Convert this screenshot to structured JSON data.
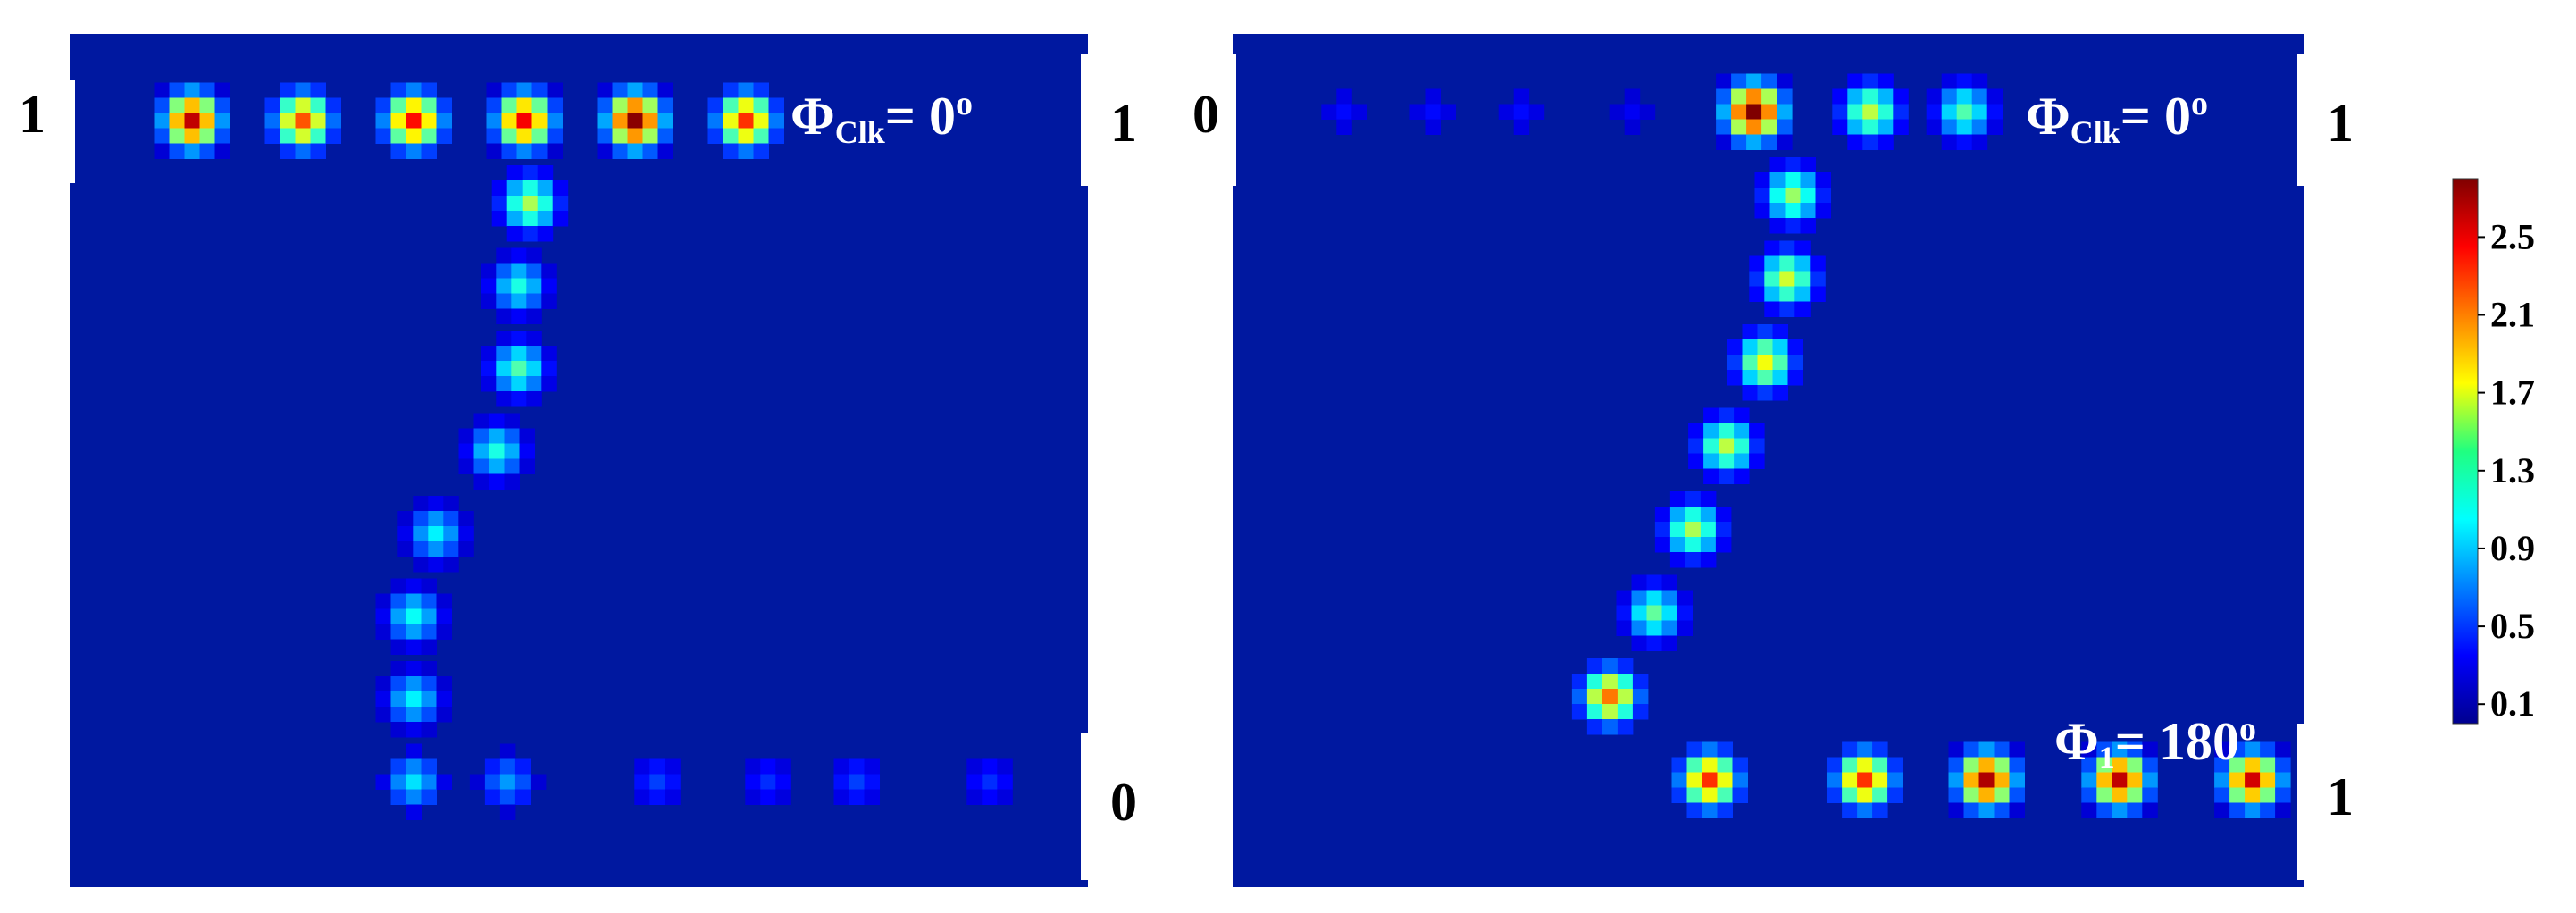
{
  "chart_data": [
    {
      "type": "heatmap",
      "panel": "left",
      "title": "",
      "ports": {
        "top_left": "1",
        "top_right": "1",
        "bottom_right": "0"
      },
      "annotation": {
        "symbol": "Φ",
        "sub": "Clk",
        "rest": "= 0",
        "sup": "o"
      },
      "value_range": [
        0.0,
        2.8
      ],
      "background_value": 0.02,
      "clusters": [
        {
          "row": 0,
          "col": 0,
          "peak": 2.6
        },
        {
          "row": 0,
          "col": 1,
          "peak": 2.2
        },
        {
          "row": 0,
          "col": 2,
          "peak": 2.4
        },
        {
          "row": 0,
          "col": 3,
          "peak": 2.45
        },
        {
          "row": 0,
          "col": 4,
          "peak": 2.75
        },
        {
          "row": 0,
          "col": 5,
          "peak": 2.3
        },
        {
          "row": 1,
          "col": 3.05,
          "peak": 1.5
        },
        {
          "row": 2,
          "col": 2.95,
          "peak": 1.1
        },
        {
          "row": 3,
          "col": 2.95,
          "peak": 1.25
        },
        {
          "row": 4,
          "col": 2.75,
          "peak": 1.1
        },
        {
          "row": 5,
          "col": 2.2,
          "peak": 1.0
        },
        {
          "row": 6,
          "col": 2.0,
          "peak": 1.05
        },
        {
          "row": 7,
          "col": 2.0,
          "peak": 1.0
        },
        {
          "row": 8,
          "col": 2.0,
          "peak": 0.95
        },
        {
          "row": 8,
          "col": 2.85,
          "peak": 0.75
        },
        {
          "row": 8,
          "col": 4.2,
          "peak": 0.5
        },
        {
          "row": 8,
          "col": 5.2,
          "peak": 0.45
        },
        {
          "row": 8,
          "col": 6.0,
          "peak": 0.5
        },
        {
          "row": 8,
          "col": 7.2,
          "peak": 0.45
        }
      ]
    },
    {
      "type": "heatmap",
      "panel": "right",
      "title": "",
      "ports": {
        "top_left": "0",
        "top_right": "1",
        "bottom_right": "1"
      },
      "annotation_top": {
        "symbol": "Φ",
        "sub": "Clk",
        "rest": "= 0",
        "sup": "o"
      },
      "annotation_bottom": {
        "symbol": "Φ",
        "sub": "1",
        "rest": "= 180",
        "sup": "o"
      },
      "value_range": [
        0.0,
        2.8
      ],
      "background_value": 0.02,
      "clusters": [
        {
          "row": 0,
          "col": 0.2,
          "peak": 0.35
        },
        {
          "row": 0,
          "col": 1.0,
          "peak": 0.35
        },
        {
          "row": 0,
          "col": 1.8,
          "peak": 0.35
        },
        {
          "row": 0,
          "col": 2.8,
          "peak": 0.3
        },
        {
          "row": 0,
          "col": 3.9,
          "peak": 2.8
        },
        {
          "row": 0,
          "col": 4.95,
          "peak": 1.55
        },
        {
          "row": 0,
          "col": 5.8,
          "peak": 1.25
        },
        {
          "row": 1,
          "col": 4.25,
          "peak": 1.45
        },
        {
          "row": 2,
          "col": 4.2,
          "peak": 1.6
        },
        {
          "row": 3,
          "col": 4.0,
          "peak": 1.7
        },
        {
          "row": 4,
          "col": 3.65,
          "peak": 1.55
        },
        {
          "row": 5,
          "col": 3.35,
          "peak": 1.5
        },
        {
          "row": 6,
          "col": 3.0,
          "peak": 1.3
        },
        {
          "row": 7,
          "col": 2.6,
          "peak": 2.1
        },
        {
          "row": 8,
          "col": 3.5,
          "peak": 2.3
        },
        {
          "row": 8,
          "col": 4.9,
          "peak": 2.3
        },
        {
          "row": 8,
          "col": 6.0,
          "peak": 2.65
        },
        {
          "row": 8,
          "col": 7.2,
          "peak": 2.6
        },
        {
          "row": 8,
          "col": 8.4,
          "peak": 2.55
        }
      ]
    }
  ],
  "colorbar": {
    "ticks": [
      "2.5",
      "2.1",
      "1.7",
      "1.3",
      "0.9",
      "0.5",
      "0.1"
    ],
    "tick_values": [
      2.5,
      2.1,
      1.7,
      1.3,
      0.9,
      0.5,
      0.1
    ],
    "range": [
      0.0,
      2.8
    ],
    "colormap": "jet"
  }
}
